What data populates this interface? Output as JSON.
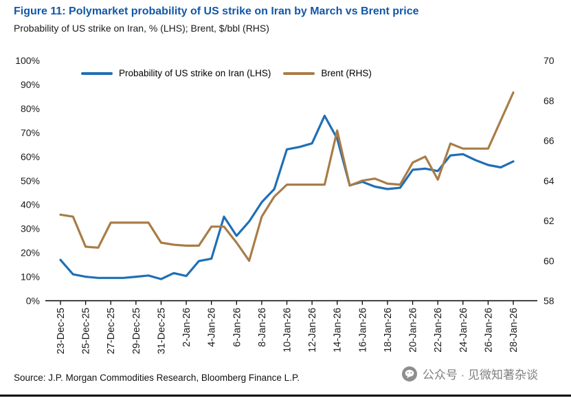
{
  "header": {
    "title": "Figure 11: Polymarket probability of US strike on Iran by March vs Brent price",
    "subtitle": "Probability of US strike on Iran, % (LHS); Brent, $/bbl (RHS)"
  },
  "footer": {
    "source": "Source: J.P. Morgan Commodities Research, Bloomberg Finance L.P.",
    "watermark": "公众号 · 见微知著杂谈"
  },
  "colors": {
    "title_blue": "#1257A8",
    "probability_line": "#1F6FB5",
    "brent_line": "#A97C47",
    "watermark_gray": "#7F7F7F",
    "axis_black": "#000000"
  },
  "chart_data": {
    "type": "line",
    "title": "Polymarket probability of US strike on Iran by March vs Brent price",
    "grid": false,
    "legend_position": "top-inside",
    "x_label_every": 2,
    "x": [
      "23-Dec-25",
      "24-Dec-25",
      "25-Dec-25",
      "26-Dec-25",
      "27-Dec-25",
      "28-Dec-25",
      "29-Dec-25",
      "30-Dec-25",
      "31-Dec-25",
      "1-Jan-26",
      "2-Jan-26",
      "3-Jan-26",
      "4-Jan-26",
      "5-Jan-26",
      "6-Jan-26",
      "7-Jan-26",
      "8-Jan-26",
      "9-Jan-26",
      "10-Jan-26",
      "11-Jan-26",
      "12-Jan-26",
      "13-Jan-26",
      "14-Jan-26",
      "15-Jan-26",
      "16-Jan-26",
      "17-Jan-26",
      "18-Jan-26",
      "19-Jan-26",
      "20-Jan-26",
      "21-Jan-26",
      "22-Jan-26",
      "23-Jan-26",
      "24-Jan-26",
      "25-Jan-26",
      "26-Jan-26",
      "27-Jan-26",
      "28-Jan-26"
    ],
    "axes": {
      "left": {
        "label": "Probability of US strike on Iran, %",
        "min": 0,
        "max": 100,
        "tick_labels": [
          "0%",
          "10%",
          "20%",
          "30%",
          "40%",
          "50%",
          "60%",
          "70%",
          "80%",
          "90%",
          "100%"
        ]
      },
      "right": {
        "label": "Brent, $/bbl",
        "min": 58,
        "max": 70,
        "tick_labels": [
          "58",
          "60",
          "62",
          "64",
          "66",
          "68",
          "70"
        ]
      }
    },
    "series": [
      {
        "name": "Probability of US strike on Iran (LHS)",
        "axis": "left",
        "unit": "%",
        "color": "#1F6FB5",
        "values": [
          17,
          11,
          10,
          9.5,
          9.5,
          9.5,
          10,
          10.5,
          9,
          11.5,
          10.3,
          16.5,
          17.5,
          35,
          27,
          33,
          41,
          46.5,
          63,
          64,
          65.5,
          77,
          67.5,
          48,
          49.5,
          47.5,
          46.5,
          47,
          54.5,
          55,
          54,
          60.5,
          61,
          58.5,
          56.5,
          55.5,
          58
        ]
      },
      {
        "name": "Brent (RHS)",
        "axis": "right",
        "unit": "$/bbl",
        "color": "#A97C47",
        "values": [
          62.3,
          62.2,
          60.7,
          60.65,
          61.9,
          61.9,
          61.9,
          61.9,
          60.9,
          60.8,
          60.75,
          60.75,
          61.7,
          61.7,
          60.9,
          60.0,
          62.2,
          63.2,
          63.8,
          63.8,
          63.8,
          63.8,
          66.5,
          63.75,
          64.0,
          64.1,
          63.85,
          63.8,
          64.9,
          65.2,
          64.05,
          65.85,
          65.6,
          65.6,
          65.6,
          67.0,
          68.4
        ]
      }
    ]
  }
}
